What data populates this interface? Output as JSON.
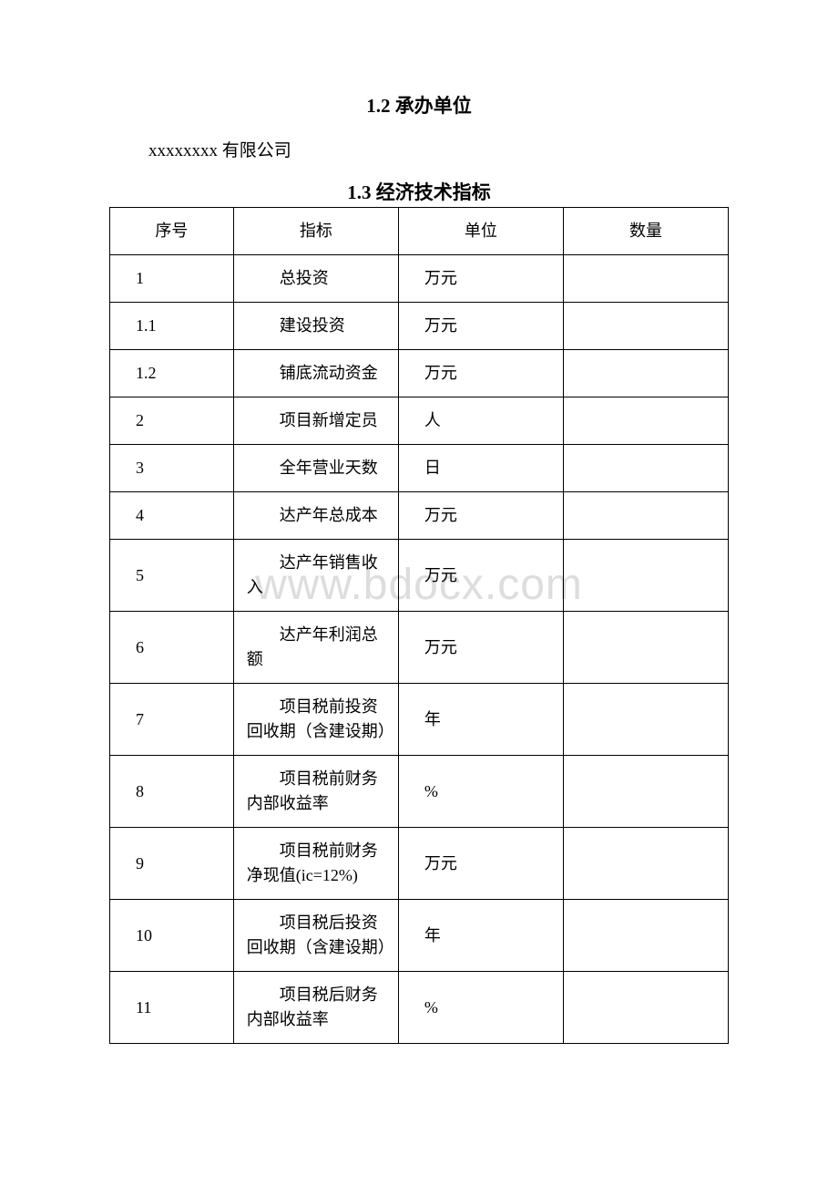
{
  "watermark": "www.bdocx.com",
  "section12": {
    "title": "1.2 承办单位",
    "body": "xxxxxxxx 有限公司"
  },
  "section13": {
    "title": "1.3 经济技术指标"
  },
  "table": {
    "headers": {
      "seq": "序号",
      "indicator": "指标",
      "unit": "单位",
      "qty": "数量"
    },
    "rows": [
      {
        "seq": "1",
        "indicator": "总投资",
        "unit": "万元",
        "qty": ""
      },
      {
        "seq": "1.1",
        "indicator": "建设投资",
        "unit": "万元",
        "qty": ""
      },
      {
        "seq": "1.2",
        "indicator": "铺底流动资金",
        "unit": "万元",
        "qty": ""
      },
      {
        "seq": "2",
        "indicator": "项目新增定员",
        "unit": "人",
        "qty": ""
      },
      {
        "seq": "3",
        "indicator": "全年营业天数",
        "unit": "日",
        "qty": ""
      },
      {
        "seq": "4",
        "indicator": "达产年总成本",
        "unit": "万元",
        "qty": ""
      },
      {
        "seq": "5",
        "indicator": "达产年销售收入",
        "unit": "万元",
        "qty": ""
      },
      {
        "seq": "6",
        "indicator": "达产年利润总额",
        "unit": "万元",
        "qty": ""
      },
      {
        "seq": "7",
        "indicator": "项目税前投资回收期（含建设期）",
        "unit": "年",
        "qty": ""
      },
      {
        "seq": "8",
        "indicator": "项目税前财务内部收益率",
        "unit": "%",
        "qty": "",
        "unitLatin": true
      },
      {
        "seq": "9",
        "indicator": "项目税前财务净现值(ic=12%)",
        "unit": "万元",
        "qty": ""
      },
      {
        "seq": "10",
        "indicator": "项目税后投资回收期（含建设期）",
        "unit": "年",
        "qty": ""
      },
      {
        "seq": "11",
        "indicator": "项目税后财务内部收益率",
        "unit": "%",
        "qty": "",
        "unitLatin": true
      }
    ]
  }
}
